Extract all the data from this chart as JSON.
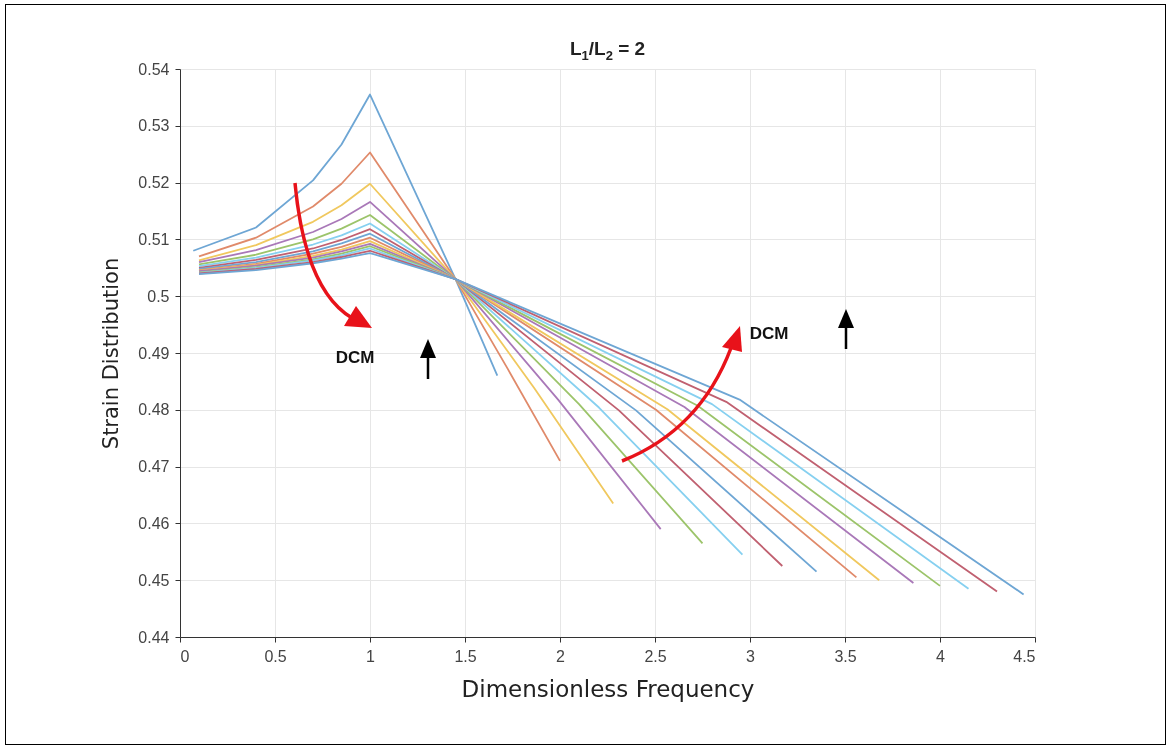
{
  "chart_data": {
    "type": "line",
    "title": "L$_{1}$/L$_{2}$ = 2",
    "xlabel": "Dimensionless Frequency",
    "ylabel": "Strain Distribution",
    "annotations": [
      "DCM",
      "DCM"
    ],
    "xlim": [
      0,
      4.5
    ],
    "xticks": [
      0,
      0.5,
      1,
      1.5,
      2,
      2.5,
      3,
      3.5,
      4,
      4.5
    ],
    "ylim": [
      0.44,
      0.54
    ],
    "yticks": [
      0.44,
      0.45,
      0.46,
      0.47,
      0.48,
      0.49,
      0.5,
      0.51,
      0.52,
      0.53,
      0.54
    ],
    "grid": true,
    "series": [
      {
        "color": "#6ea6d4",
        "x": [
          0.07,
          0.4,
          0.7,
          0.85,
          1,
          1.45,
          1.67
        ],
        "values": [
          0.508,
          0.5121,
          0.5204,
          0.5267,
          0.5355,
          0.503,
          0.486
        ]
      },
      {
        "color": "#e08a6a",
        "x": [
          0.1,
          0.4,
          0.7,
          0.85,
          1,
          1.45,
          1.725,
          2.0
        ],
        "values": [
          0.507,
          0.5103,
          0.5158,
          0.5198,
          0.5253,
          0.503,
          0.4872,
          0.471
        ]
      },
      {
        "color": "#f0c85e",
        "x": [
          0.1,
          0.4,
          0.7,
          0.85,
          1,
          1.45,
          1.865,
          2.28
        ],
        "values": [
          0.5063,
          0.509,
          0.5131,
          0.516,
          0.5198,
          0.503,
          0.4838,
          0.4635
        ]
      },
      {
        "color": "#a978b8",
        "x": [
          0.1,
          0.4,
          0.7,
          0.85,
          1,
          1.45,
          1.99,
          2.53
        ],
        "values": [
          0.506,
          0.5081,
          0.5113,
          0.5136,
          0.5166,
          0.503,
          0.4818,
          0.459
        ]
      },
      {
        "color": "#9cc46a",
        "x": [
          0.1,
          0.4,
          0.7,
          0.85,
          1,
          1.45,
          2.1,
          2.75
        ],
        "values": [
          0.5056,
          0.5073,
          0.51,
          0.5119,
          0.5143,
          0.503,
          0.481,
          0.4565
        ]
      },
      {
        "color": "#86d0f0",
        "x": [
          0.1,
          0.4,
          0.7,
          0.85,
          1,
          1.45,
          2.205,
          2.96
        ],
        "values": [
          0.5053,
          0.5068,
          0.5091,
          0.5107,
          0.5128,
          0.503,
          0.4804,
          0.4545
        ]
      },
      {
        "color": "#c06070",
        "x": [
          0.1,
          0.4,
          0.7,
          0.85,
          1,
          1.45,
          2.31,
          3.17
        ],
        "values": [
          0.505,
          0.5064,
          0.5084,
          0.5099,
          0.5118,
          0.503,
          0.4799,
          0.4525
        ]
      },
      {
        "color": "#6ea6d4",
        "x": [
          0.1,
          0.4,
          0.7,
          0.85,
          1,
          1.45,
          2.4,
          3.35
        ],
        "values": [
          0.5048,
          0.506,
          0.5079,
          0.5093,
          0.511,
          0.503,
          0.4799,
          0.4515
        ]
      },
      {
        "color": "#e08a6a",
        "x": [
          0.1,
          0.4,
          0.7,
          0.85,
          1,
          1.45,
          2.505,
          3.56
        ],
        "values": [
          0.5046,
          0.5057,
          0.5075,
          0.5087,
          0.5103,
          0.503,
          0.48,
          0.4505
        ]
      },
      {
        "color": "#f0c85e",
        "x": [
          0.1,
          0.4,
          0.7,
          0.85,
          1,
          1.45,
          2.565,
          3.68
        ],
        "values": [
          0.5045,
          0.5055,
          0.5071,
          0.5082,
          0.5097,
          0.503,
          0.4801,
          0.45
        ]
      },
      {
        "color": "#a978b8",
        "x": [
          0.1,
          0.4,
          0.7,
          0.85,
          1,
          1.45,
          2.655,
          3.86
        ],
        "values": [
          0.5044,
          0.5054,
          0.5068,
          0.5079,
          0.5092,
          0.503,
          0.4805,
          0.4495
        ]
      },
      {
        "color": "#9cc46a",
        "x": [
          0.1,
          0.4,
          0.7,
          0.85,
          1,
          1.45,
          2.725,
          4.0
        ],
        "values": [
          0.5042,
          0.5051,
          0.5065,
          0.5075,
          0.5088,
          0.503,
          0.4807,
          0.449
        ]
      },
      {
        "color": "#86d0f0",
        "x": [
          0.1,
          0.4,
          0.7,
          0.85,
          1,
          1.45,
          2.8,
          4.15
        ],
        "values": [
          0.5041,
          0.505,
          0.5063,
          0.5072,
          0.5084,
          0.503,
          0.481,
          0.4485
        ]
      },
      {
        "color": "#c06070",
        "x": [
          0.1,
          0.4,
          0.7,
          0.85,
          1,
          1.45,
          2.875,
          4.3
        ],
        "values": [
          0.504,
          0.5048,
          0.506,
          0.5069,
          0.508,
          0.503,
          0.4814,
          0.448
        ]
      },
      {
        "color": "#6ea6d4",
        "x": [
          0.1,
          0.4,
          0.7,
          0.85,
          1,
          1.45,
          2.945,
          4.44
        ],
        "values": [
          0.5039,
          0.5046,
          0.5058,
          0.5066,
          0.5076,
          0.503,
          0.4818,
          0.4475
        ]
      }
    ]
  }
}
